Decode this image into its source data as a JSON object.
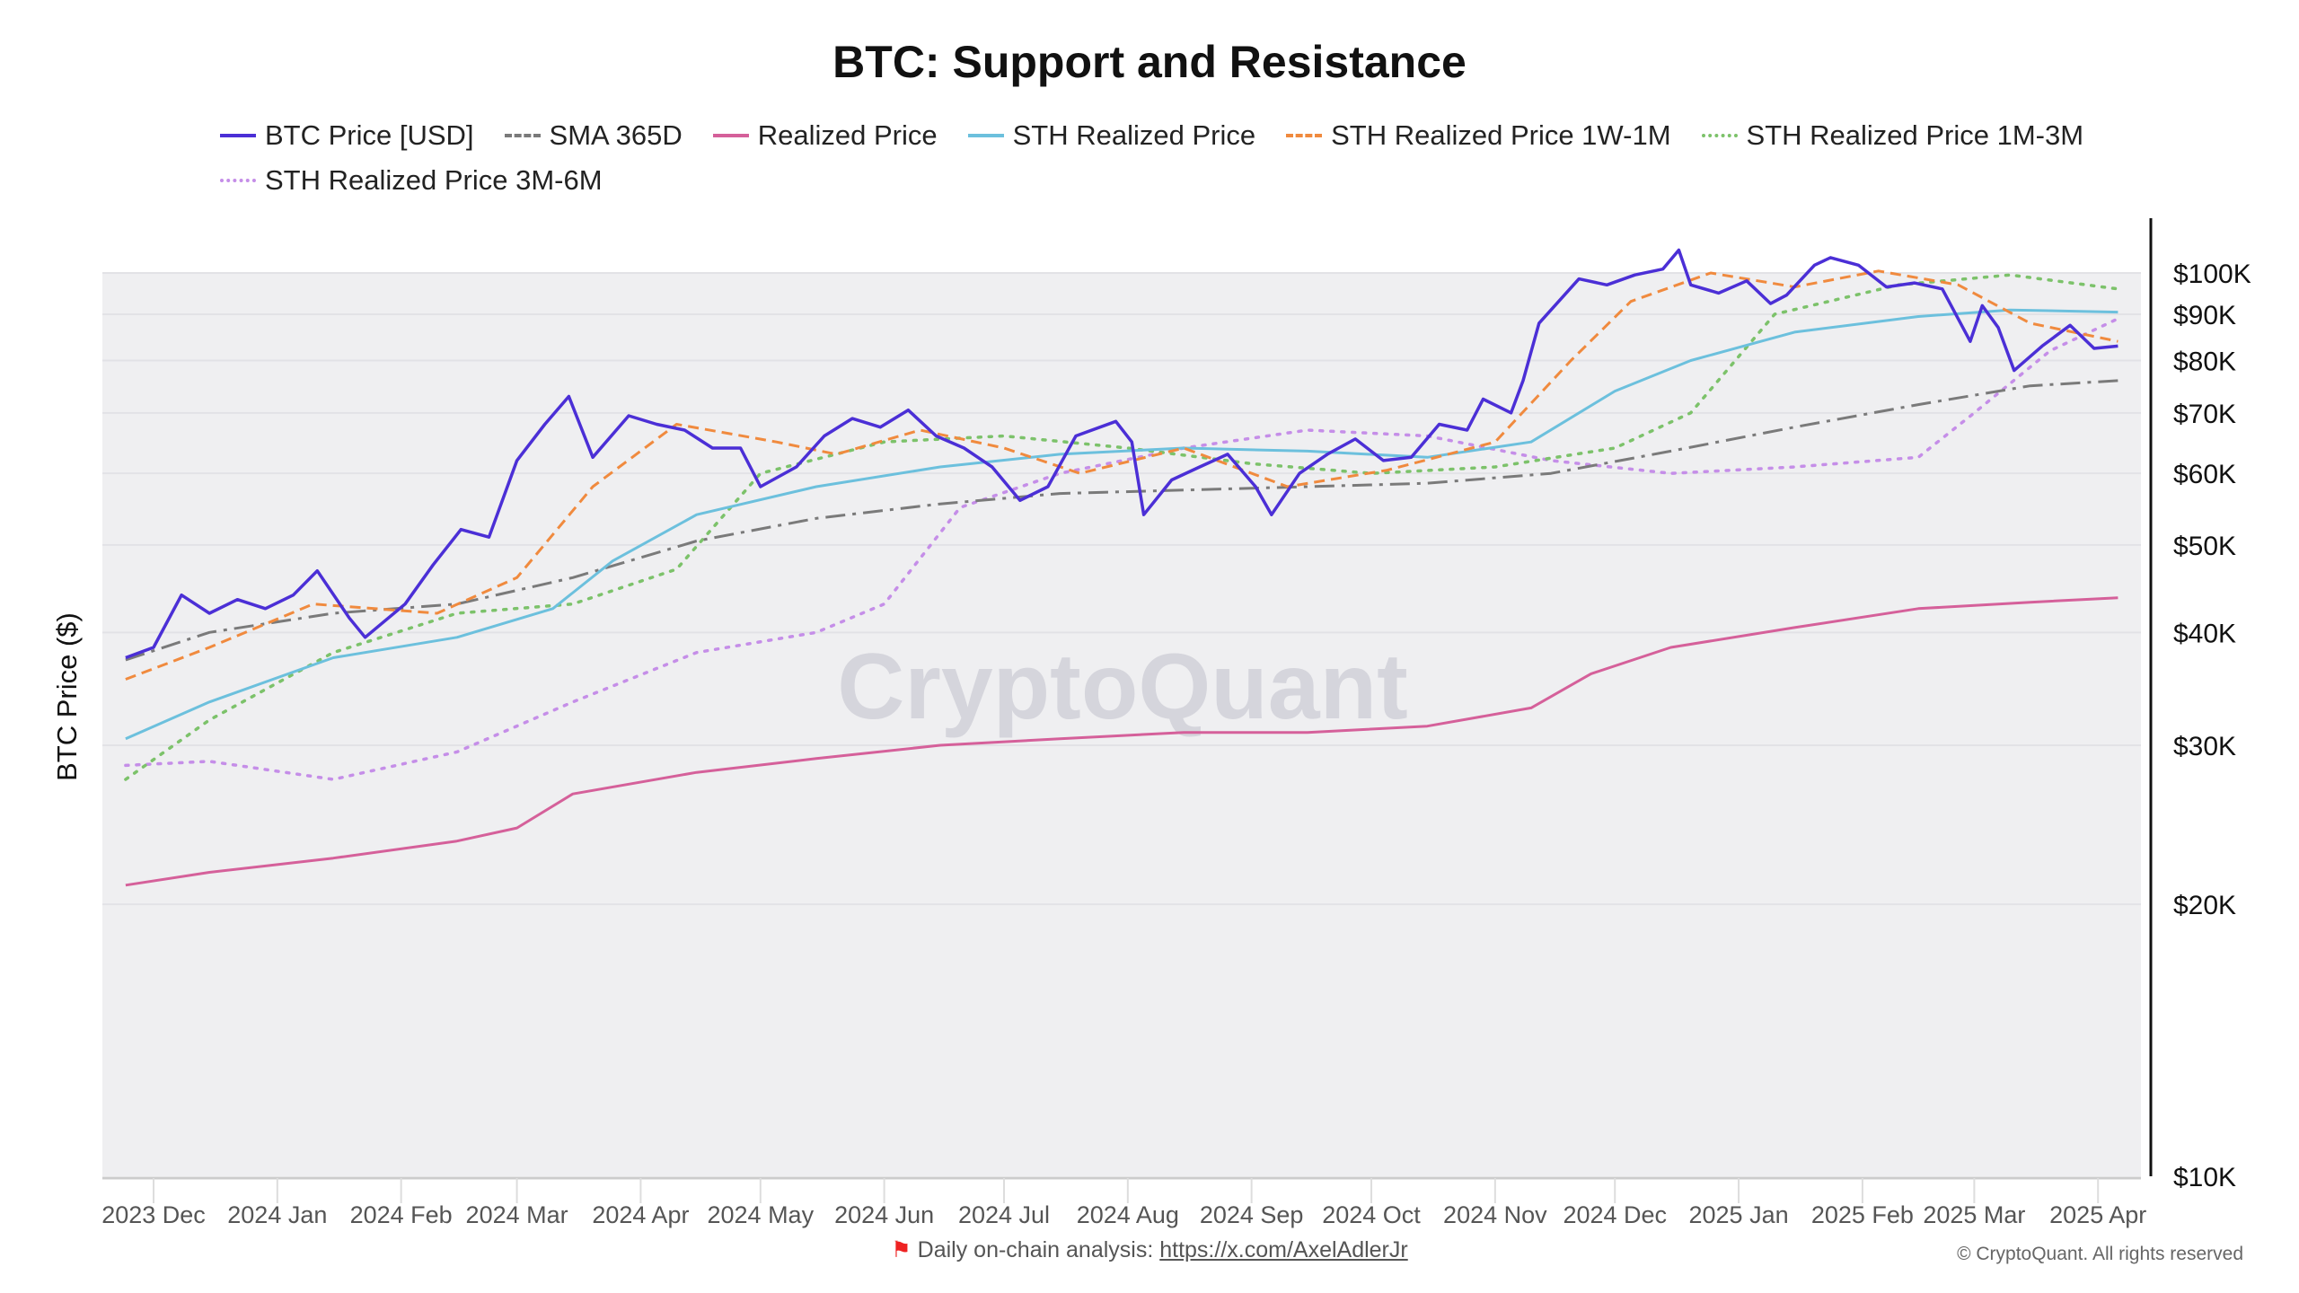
{
  "chart_data": {
    "type": "line",
    "title": "BTC: Support and Resistance",
    "ylabel": "BTC Price ($)",
    "yscale": "log",
    "ylim": [
      10000,
      110000
    ],
    "yticks": [
      {
        "v": 10000,
        "label": "$10K"
      },
      {
        "v": 20000,
        "label": "$20K"
      },
      {
        "v": 30000,
        "label": "$30K"
      },
      {
        "v": 40000,
        "label": "$40K"
      },
      {
        "v": 50000,
        "label": "$50K"
      },
      {
        "v": 60000,
        "label": "$60K"
      },
      {
        "v": 70000,
        "label": "$70K"
      },
      {
        "v": 80000,
        "label": "$80K"
      },
      {
        "v": 90000,
        "label": "$90K"
      },
      {
        "v": 100000,
        "label": "$100K"
      }
    ],
    "xticks": [
      {
        "d": "2023-12-01",
        "label": "2023 Dec"
      },
      {
        "d": "2024-01-01",
        "label": "2024 Jan"
      },
      {
        "d": "2024-02-01",
        "label": "2024 Feb"
      },
      {
        "d": "2024-03-01",
        "label": "2024 Mar"
      },
      {
        "d": "2024-04-01",
        "label": "2024 Apr"
      },
      {
        "d": "2024-05-01",
        "label": "2024 May"
      },
      {
        "d": "2024-06-01",
        "label": "2024 Jun"
      },
      {
        "d": "2024-07-01",
        "label": "2024 Jul"
      },
      {
        "d": "2024-08-01",
        "label": "2024 Aug"
      },
      {
        "d": "2024-09-01",
        "label": "2024 Sep"
      },
      {
        "d": "2024-10-01",
        "label": "2024 Oct"
      },
      {
        "d": "2024-11-01",
        "label": "2024 Nov"
      },
      {
        "d": "2024-12-01",
        "label": "2024 Dec"
      },
      {
        "d": "2025-01-01",
        "label": "2025 Jan"
      },
      {
        "d": "2025-02-01",
        "label": "2025 Feb"
      },
      {
        "d": "2025-03-01",
        "label": "2025 Mar"
      },
      {
        "d": "2025-04-01",
        "label": "2025 Apr"
      }
    ],
    "grid": true,
    "legend_position": "top",
    "series": [
      {
        "name": "BTC Price [USD]",
        "color": "#4b2fd6",
        "style": "solid",
        "points": [
          [
            "2023-11-24",
            37500
          ],
          [
            "2023-12-01",
            38500
          ],
          [
            "2023-12-08",
            44000
          ],
          [
            "2023-12-15",
            42000
          ],
          [
            "2023-12-22",
            43500
          ],
          [
            "2023-12-29",
            42500
          ],
          [
            "2024-01-05",
            44000
          ],
          [
            "2024-01-11",
            46800
          ],
          [
            "2024-01-19",
            41500
          ],
          [
            "2024-01-23",
            39500
          ],
          [
            "2024-02-02",
            43000
          ],
          [
            "2024-02-09",
            47500
          ],
          [
            "2024-02-16",
            52000
          ],
          [
            "2024-02-23",
            51000
          ],
          [
            "2024-03-01",
            62000
          ],
          [
            "2024-03-08",
            68000
          ],
          [
            "2024-03-14",
            73000
          ],
          [
            "2024-03-20",
            62500
          ],
          [
            "2024-03-29",
            69500
          ],
          [
            "2024-04-05",
            68000
          ],
          [
            "2024-04-12",
            67000
          ],
          [
            "2024-04-19",
            64000
          ],
          [
            "2024-04-26",
            64000
          ],
          [
            "2024-05-01",
            58000
          ],
          [
            "2024-05-10",
            61000
          ],
          [
            "2024-05-17",
            66000
          ],
          [
            "2024-05-24",
            69000
          ],
          [
            "2024-05-31",
            67500
          ],
          [
            "2024-06-07",
            70500
          ],
          [
            "2024-06-14",
            66000
          ],
          [
            "2024-06-21",
            64000
          ],
          [
            "2024-06-28",
            61000
          ],
          [
            "2024-07-05",
            56000
          ],
          [
            "2024-07-12",
            58000
          ],
          [
            "2024-07-19",
            66000
          ],
          [
            "2024-07-29",
            68500
          ],
          [
            "2024-08-02",
            65000
          ],
          [
            "2024-08-05",
            54000
          ],
          [
            "2024-08-12",
            59000
          ],
          [
            "2024-08-19",
            61000
          ],
          [
            "2024-08-26",
            63000
          ],
          [
            "2024-09-02",
            58000
          ],
          [
            "2024-09-06",
            54000
          ],
          [
            "2024-09-13",
            60000
          ],
          [
            "2024-09-20",
            63000
          ],
          [
            "2024-09-27",
            65500
          ],
          [
            "2024-10-04",
            62000
          ],
          [
            "2024-10-11",
            62500
          ],
          [
            "2024-10-18",
            68000
          ],
          [
            "2024-10-25",
            67000
          ],
          [
            "2024-10-29",
            72500
          ],
          [
            "2024-11-05",
            70000
          ],
          [
            "2024-11-08",
            76000
          ],
          [
            "2024-11-12",
            88000
          ],
          [
            "2024-11-22",
            98500
          ],
          [
            "2024-11-29",
            97000
          ],
          [
            "2024-12-06",
            99500
          ],
          [
            "2024-12-13",
            101000
          ],
          [
            "2024-12-17",
            106000
          ],
          [
            "2024-12-20",
            97000
          ],
          [
            "2024-12-27",
            95000
          ],
          [
            "2025-01-03",
            98000
          ],
          [
            "2025-01-09",
            92500
          ],
          [
            "2025-01-13",
            94500
          ],
          [
            "2025-01-20",
            102000
          ],
          [
            "2025-01-24",
            104000
          ],
          [
            "2025-01-31",
            102000
          ],
          [
            "2025-02-07",
            96500
          ],
          [
            "2025-02-14",
            97500
          ],
          [
            "2025-02-21",
            96000
          ],
          [
            "2025-02-28",
            84000
          ],
          [
            "2025-03-03",
            92000
          ],
          [
            "2025-03-07",
            87000
          ],
          [
            "2025-03-11",
            78000
          ],
          [
            "2025-03-18",
            83000
          ],
          [
            "2025-03-25",
            87500
          ],
          [
            "2025-03-31",
            82500
          ],
          [
            "2025-04-06",
            83000
          ]
        ]
      },
      {
        "name": "SMA 365D",
        "color": "#7a7a7a",
        "style": "dashdot",
        "points": [
          [
            "2023-11-24",
            37300
          ],
          [
            "2023-12-15",
            40000
          ],
          [
            "2024-01-15",
            42000
          ],
          [
            "2024-02-15",
            43000
          ],
          [
            "2024-03-15",
            46000
          ],
          [
            "2024-04-15",
            50500
          ],
          [
            "2024-05-15",
            53500
          ],
          [
            "2024-06-15",
            55500
          ],
          [
            "2024-07-15",
            57000
          ],
          [
            "2024-08-15",
            57500
          ],
          [
            "2024-09-15",
            58000
          ],
          [
            "2024-10-15",
            58500
          ],
          [
            "2024-11-15",
            60000
          ],
          [
            "2024-12-15",
            63500
          ],
          [
            "2025-01-15",
            67500
          ],
          [
            "2025-02-15",
            71500
          ],
          [
            "2025-03-15",
            75000
          ],
          [
            "2025-04-06",
            76000
          ]
        ]
      },
      {
        "name": "Realized Price",
        "color": "#d5609a",
        "style": "solid",
        "points": [
          [
            "2023-11-24",
            21000
          ],
          [
            "2023-12-15",
            21700
          ],
          [
            "2024-01-15",
            22500
          ],
          [
            "2024-02-15",
            23500
          ],
          [
            "2024-03-01",
            24300
          ],
          [
            "2024-03-15",
            26500
          ],
          [
            "2024-04-15",
            28000
          ],
          [
            "2024-05-15",
            29000
          ],
          [
            "2024-06-15",
            30000
          ],
          [
            "2024-07-15",
            30500
          ],
          [
            "2024-08-15",
            31000
          ],
          [
            "2024-09-15",
            31000
          ],
          [
            "2024-10-15",
            31500
          ],
          [
            "2024-11-10",
            33000
          ],
          [
            "2024-11-25",
            36000
          ],
          [
            "2024-12-15",
            38500
          ],
          [
            "2025-01-15",
            40500
          ],
          [
            "2025-02-15",
            42500
          ],
          [
            "2025-03-15",
            43200
          ],
          [
            "2025-04-06",
            43700
          ]
        ]
      },
      {
        "name": "STH Realized Price",
        "color": "#6cc0dd",
        "style": "solid",
        "points": [
          [
            "2023-11-24",
            30500
          ],
          [
            "2023-12-15",
            33500
          ],
          [
            "2024-01-15",
            37500
          ],
          [
            "2024-02-15",
            39500
          ],
          [
            "2024-03-10",
            42500
          ],
          [
            "2024-03-25",
            48000
          ],
          [
            "2024-04-15",
            54000
          ],
          [
            "2024-05-15",
            58000
          ],
          [
            "2024-06-15",
            61000
          ],
          [
            "2024-07-15",
            63000
          ],
          [
            "2024-08-15",
            64000
          ],
          [
            "2024-09-15",
            63500
          ],
          [
            "2024-10-15",
            62500
          ],
          [
            "2024-11-10",
            65000
          ],
          [
            "2024-12-01",
            74000
          ],
          [
            "2024-12-20",
            80000
          ],
          [
            "2025-01-15",
            86000
          ],
          [
            "2025-02-15",
            89500
          ],
          [
            "2025-03-10",
            91000
          ],
          [
            "2025-04-06",
            90500
          ]
        ]
      },
      {
        "name": "STH Realized Price 1W-1M",
        "color": "#f08a3e",
        "style": "dashed",
        "points": [
          [
            "2023-11-24",
            35500
          ],
          [
            "2023-12-15",
            38500
          ],
          [
            "2024-01-10",
            43000
          ],
          [
            "2024-02-10",
            42000
          ],
          [
            "2024-03-01",
            46000
          ],
          [
            "2024-03-20",
            58000
          ],
          [
            "2024-04-10",
            68000
          ],
          [
            "2024-05-05",
            65000
          ],
          [
            "2024-05-20",
            63000
          ],
          [
            "2024-06-10",
            67000
          ],
          [
            "2024-07-01",
            64000
          ],
          [
            "2024-07-20",
            60000
          ],
          [
            "2024-08-15",
            64000
          ],
          [
            "2024-09-10",
            58000
          ],
          [
            "2024-10-05",
            60500
          ],
          [
            "2024-11-01",
            65000
          ],
          [
            "2024-11-20",
            80000
          ],
          [
            "2024-12-05",
            93000
          ],
          [
            "2024-12-25",
            100000
          ],
          [
            "2025-01-15",
            96500
          ],
          [
            "2025-02-05",
            100500
          ],
          [
            "2025-02-25",
            97000
          ],
          [
            "2025-03-15",
            88000
          ],
          [
            "2025-04-06",
            84000
          ]
        ]
      },
      {
        "name": "STH Realized Price 1M-3M",
        "color": "#7cc26a",
        "style": "dotted",
        "points": [
          [
            "2023-11-24",
            27500
          ],
          [
            "2023-12-15",
            32000
          ],
          [
            "2024-01-15",
            38000
          ],
          [
            "2024-02-15",
            42000
          ],
          [
            "2024-03-15",
            43000
          ],
          [
            "2024-04-10",
            47000
          ],
          [
            "2024-05-01",
            60000
          ],
          [
            "2024-06-01",
            65000
          ],
          [
            "2024-07-01",
            66000
          ],
          [
            "2024-08-01",
            64000
          ],
          [
            "2024-09-01",
            61500
          ],
          [
            "2024-10-01",
            60000
          ],
          [
            "2024-11-01",
            61000
          ],
          [
            "2024-12-01",
            64000
          ],
          [
            "2024-12-20",
            70000
          ],
          [
            "2025-01-10",
            90000
          ],
          [
            "2025-02-10",
            97000
          ],
          [
            "2025-03-10",
            99500
          ],
          [
            "2025-04-06",
            96000
          ]
        ]
      },
      {
        "name": "STH Realized Price 3M-6M",
        "color": "#c58ee8",
        "style": "dotted",
        "points": [
          [
            "2023-11-24",
            28500
          ],
          [
            "2023-12-15",
            28800
          ],
          [
            "2024-01-15",
            27500
          ],
          [
            "2024-02-15",
            29500
          ],
          [
            "2024-03-15",
            33500
          ],
          [
            "2024-04-15",
            38000
          ],
          [
            "2024-05-15",
            40000
          ],
          [
            "2024-06-01",
            43000
          ],
          [
            "2024-06-20",
            55000
          ],
          [
            "2024-07-15",
            60000
          ],
          [
            "2024-08-15",
            64000
          ],
          [
            "2024-09-15",
            67000
          ],
          [
            "2024-10-15",
            66000
          ],
          [
            "2024-11-15",
            62000
          ],
          [
            "2024-12-15",
            60000
          ],
          [
            "2025-01-15",
            61000
          ],
          [
            "2025-02-15",
            62500
          ],
          [
            "2025-03-01",
            70000
          ],
          [
            "2025-03-20",
            82000
          ],
          [
            "2025-04-06",
            89000
          ]
        ]
      }
    ]
  },
  "watermark": "CryptoQuant",
  "footer": {
    "text": "Daily on-chain analysis:",
    "link": "https://x.com/AxelAdlerJr",
    "flag_icon": "red-flag-icon"
  },
  "copyright": "© CryptoQuant. All rights reserved"
}
